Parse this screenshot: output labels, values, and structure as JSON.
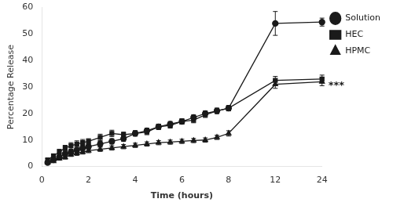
{
  "chart_data": {
    "type": "line",
    "x": [
      0.25,
      0.5,
      0.75,
      1.0,
      1.25,
      1.5,
      1.75,
      2.0,
      2.5,
      3.0,
      3.5,
      4.0,
      4.5,
      5.0,
      5.5,
      6.0,
      6.5,
      7.0,
      7.5,
      8.0,
      12.0,
      24.0
    ],
    "series": [
      {
        "name": "Solution",
        "color": "#1a1a1a",
        "marker": "circle",
        "line_style": "solid",
        "values": [
          1.5,
          2.5,
          3.5,
          4.8,
          5.5,
          6.2,
          7.0,
          7.5,
          8.5,
          9.5,
          10.5,
          12.5,
          13.5,
          15.0,
          16.0,
          17.0,
          18.5,
          20.0,
          21.0,
          22.0,
          54.0,
          54.5
        ],
        "errors": [
          0.5,
          0.7,
          0.8,
          1.0,
          1.0,
          1.0,
          1.0,
          1.0,
          1.0,
          1.0,
          1.0,
          1.0,
          1.0,
          1.0,
          1.0,
          1.0,
          1.0,
          1.0,
          1.0,
          1.0,
          4.5,
          1.5
        ]
      },
      {
        "name": "HEC",
        "color": "#1a1a1a",
        "marker": "square",
        "line_style": "solid",
        "values": [
          2.5,
          4.0,
          5.5,
          7.0,
          7.8,
          8.5,
          9.0,
          9.5,
          11.0,
          12.5,
          12.0,
          12.5,
          13.0,
          15.0,
          15.5,
          17.0,
          17.5,
          19.5,
          21.0,
          22.0,
          32.5,
          33.0
        ],
        "errors": [
          0.5,
          0.8,
          1.0,
          1.0,
          1.2,
          1.2,
          1.2,
          1.0,
          1.2,
          1.2,
          1.0,
          1.0,
          1.0,
          1.0,
          1.0,
          1.0,
          1.0,
          1.0,
          1.0,
          1.0,
          1.5,
          1.5
        ]
      },
      {
        "name": "HPMC",
        "color": "#1a1a1a",
        "marker": "triangle",
        "line_style": "solid",
        "values": [
          1.5,
          2.0,
          3.0,
          3.5,
          4.5,
          5.0,
          5.5,
          6.0,
          6.5,
          7.0,
          7.5,
          8.0,
          8.5,
          9.0,
          9.2,
          9.5,
          9.8,
          10.0,
          11.0,
          12.5,
          31.0,
          32.0
        ],
        "errors": [
          0.4,
          0.5,
          0.6,
          0.7,
          0.7,
          0.8,
          0.8,
          0.8,
          0.8,
          0.8,
          0.8,
          0.8,
          0.8,
          0.8,
          0.8,
          0.8,
          0.8,
          0.8,
          0.8,
          1.0,
          1.5,
          1.5
        ]
      }
    ],
    "xlabel": "Time (hours)",
    "ylabel": "Percentage Release",
    "xlim": [
      0,
      24
    ],
    "xticks": [
      0,
      2,
      4,
      6,
      8,
      12,
      24
    ],
    "ylim": [
      0,
      60
    ],
    "yticks": [
      0,
      10,
      20,
      30,
      40,
      50,
      60
    ],
    "grid": false,
    "legend": "right",
    "annotations": [
      {
        "text": "***",
        "x": 24,
        "y": 30.5
      }
    ]
  }
}
